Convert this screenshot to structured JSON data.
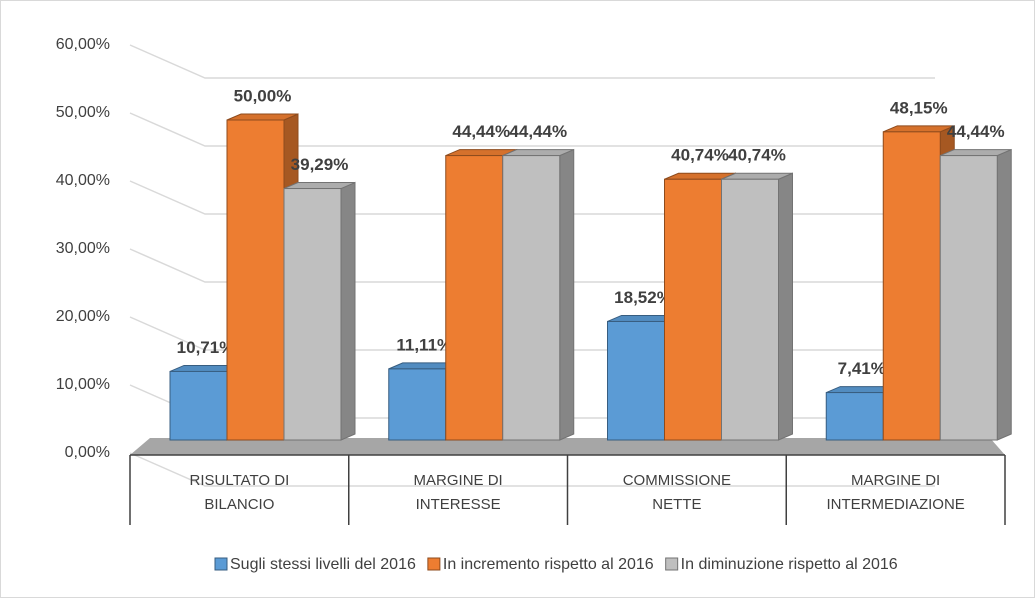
{
  "chart_data": {
    "type": "bar3d",
    "categories": [
      "RISULTATO DI BILANCIO",
      "MARGINE DI INTERESSE",
      "COMMISSIONE NETTE",
      "MARGINE DI INTERMEDIAZIONE"
    ],
    "series": [
      {
        "name": "Sugli stessi livelli del 2016",
        "color": "#5b9bd5",
        "values": [
          10.71,
          11.11,
          18.52,
          7.41
        ],
        "value_labels": [
          "10,71%",
          "11,11%",
          "18,52%",
          "7,41%"
        ]
      },
      {
        "name": "In incremento rispetto al 2016",
        "color": "#ed7d31",
        "values": [
          50,
          44.44,
          40.74,
          48.15
        ],
        "value_labels": [
          "50,00%",
          "44,44%",
          "40,74%",
          "48,15%"
        ]
      },
      {
        "name": "In diminuzione rispetto al 2016",
        "color": "#bfbfbf",
        "values": [
          39.29,
          44.44,
          40.74,
          44.44
        ],
        "value_labels": [
          "39,29%",
          "44,44%",
          "40,74%",
          "44,44%"
        ]
      }
    ],
    "ylim": [
      0,
      60
    ],
    "yticks": [
      {
        "value": 0,
        "label": "0,00%"
      },
      {
        "value": 10,
        "label": "10,00%"
      },
      {
        "value": 20,
        "label": "20,00%"
      },
      {
        "value": 30,
        "label": "30,00%"
      },
      {
        "value": 40,
        "label": "40,00%"
      },
      {
        "value": 50,
        "label": "50,00%"
      },
      {
        "value": 60,
        "label": "60,00%"
      }
    ],
    "grid": true
  }
}
